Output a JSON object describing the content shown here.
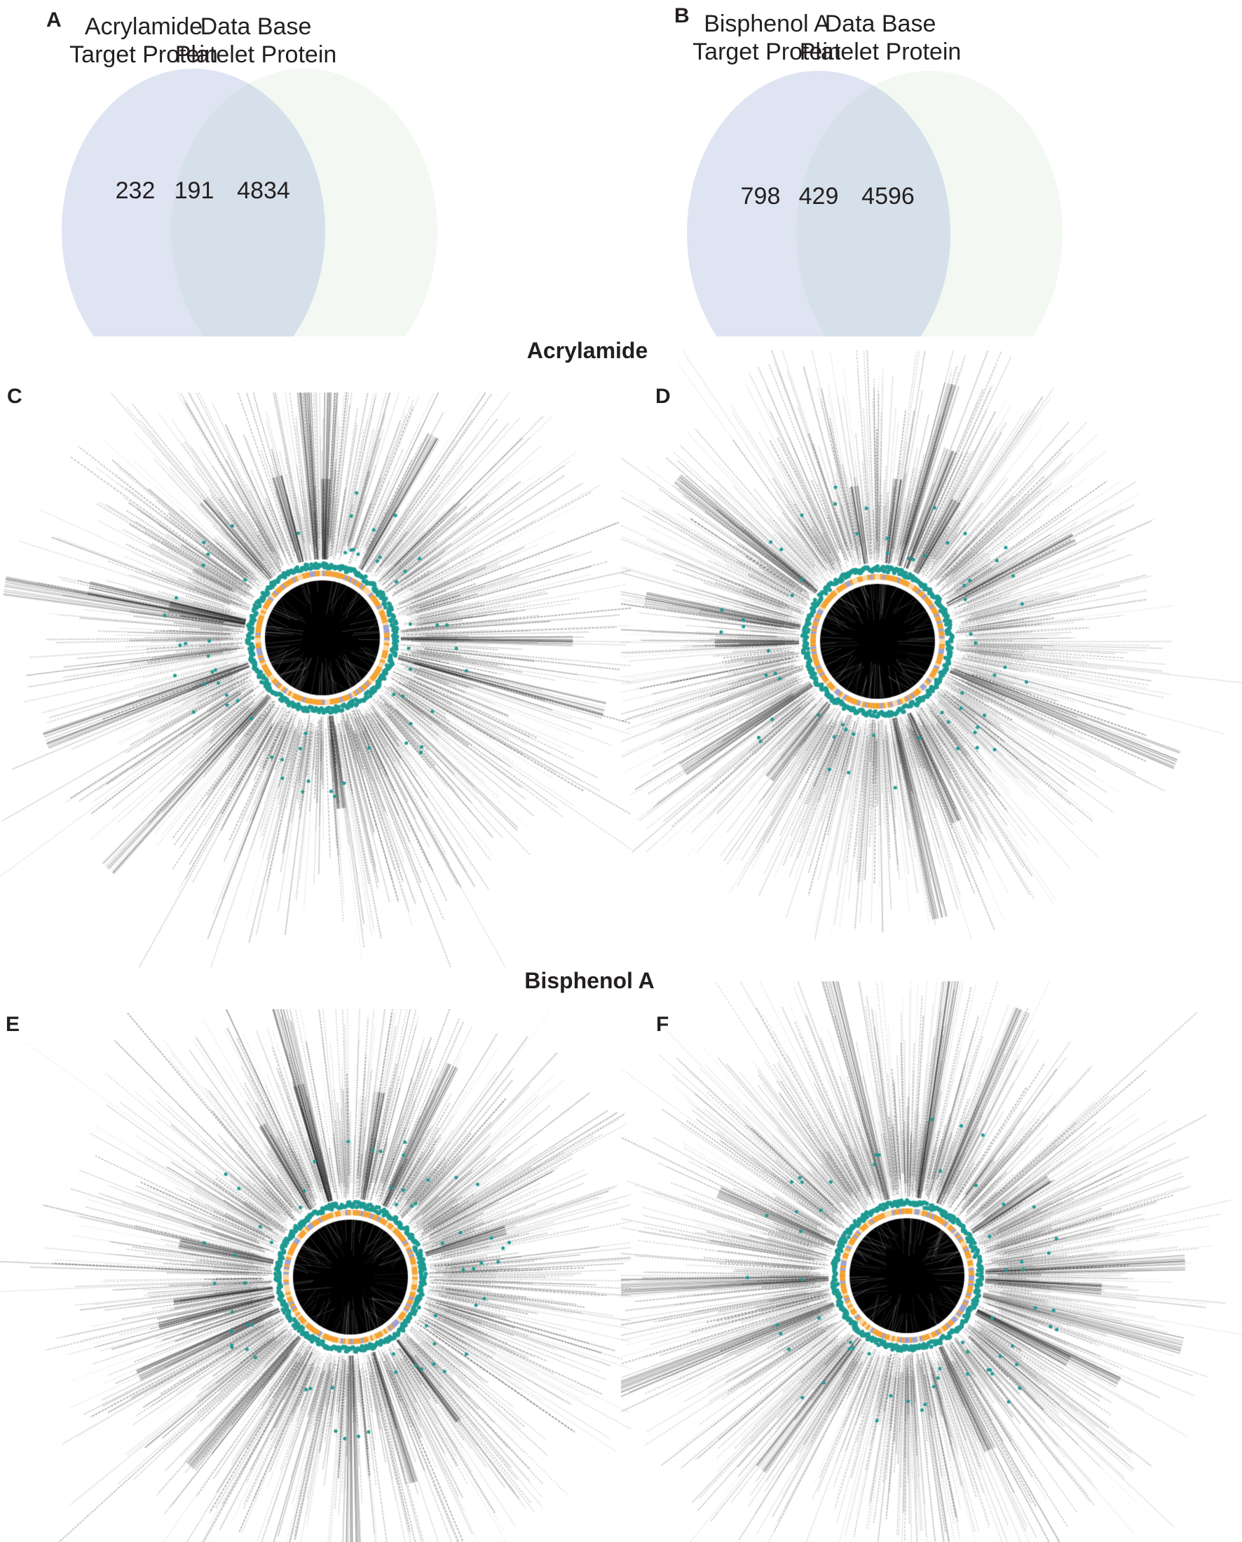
{
  "figure": {
    "panels": {
      "A": {
        "letter": "A"
      },
      "B": {
        "letter": "B"
      },
      "C": {
        "letter": "C"
      },
      "D": {
        "letter": "D"
      },
      "E": {
        "letter": "E"
      },
      "F": {
        "letter": "F"
      }
    },
    "section_titles": {
      "acrylamide": "Acrylamide",
      "bisphenol": "Bisphenol A"
    }
  },
  "venn_A": {
    "left_label_line1": "Acrylamide",
    "left_label_line2": "Target Protein",
    "right_label_line1": "Data Base",
    "right_label_line2": "Platelet Protein",
    "left_only": "232",
    "overlap": "191",
    "right_only": "4834"
  },
  "venn_B": {
    "left_label_line1": "Bisphenol A",
    "left_label_line2": "Target Protein",
    "right_label_line1": "Data Base",
    "right_label_line2": "Platelet Protein",
    "left_only": "798",
    "overlap": "429",
    "right_only": "4596"
  },
  "colors": {
    "venn_left": "#dfe4f3",
    "venn_right": "#eaf3e8",
    "venn_overlap": "#d6e0ea",
    "ring_teal": "#1f9a92",
    "ring_orange": "#f5a02c",
    "ring_lavender": "#9b9fd0",
    "network_core": "#000000",
    "label_text": "#333333"
  },
  "radial_plots": [
    {
      "id": "C",
      "group": "Acrylamide",
      "seed": 11,
      "rays": 230,
      "maxlen": 430,
      "density": 1.0
    },
    {
      "id": "D",
      "group": "Acrylamide",
      "seed": 23,
      "rays": 260,
      "maxlen": 420,
      "density": 0.75
    },
    {
      "id": "E",
      "group": "Bisphenol A",
      "seed": 37,
      "rays": 250,
      "maxlen": 430,
      "density": 1.0
    },
    {
      "id": "F",
      "group": "Bisphenol A",
      "seed": 53,
      "rays": 270,
      "maxlen": 440,
      "density": 0.8
    }
  ],
  "chart_data": [
    {
      "type": "venn",
      "title": "A",
      "sets": [
        "Acrylamide Target Protein",
        "Data Base Platelet Protein"
      ],
      "values": {
        "left_only": 232,
        "intersection": 191,
        "right_only": 4834
      }
    },
    {
      "type": "venn",
      "title": "B",
      "sets": [
        "Bisphenol A Target Protein",
        "Data Base Platelet Protein"
      ],
      "values": {
        "left_only": 798,
        "intersection": 429,
        "right_only": 4596
      }
    }
  ]
}
